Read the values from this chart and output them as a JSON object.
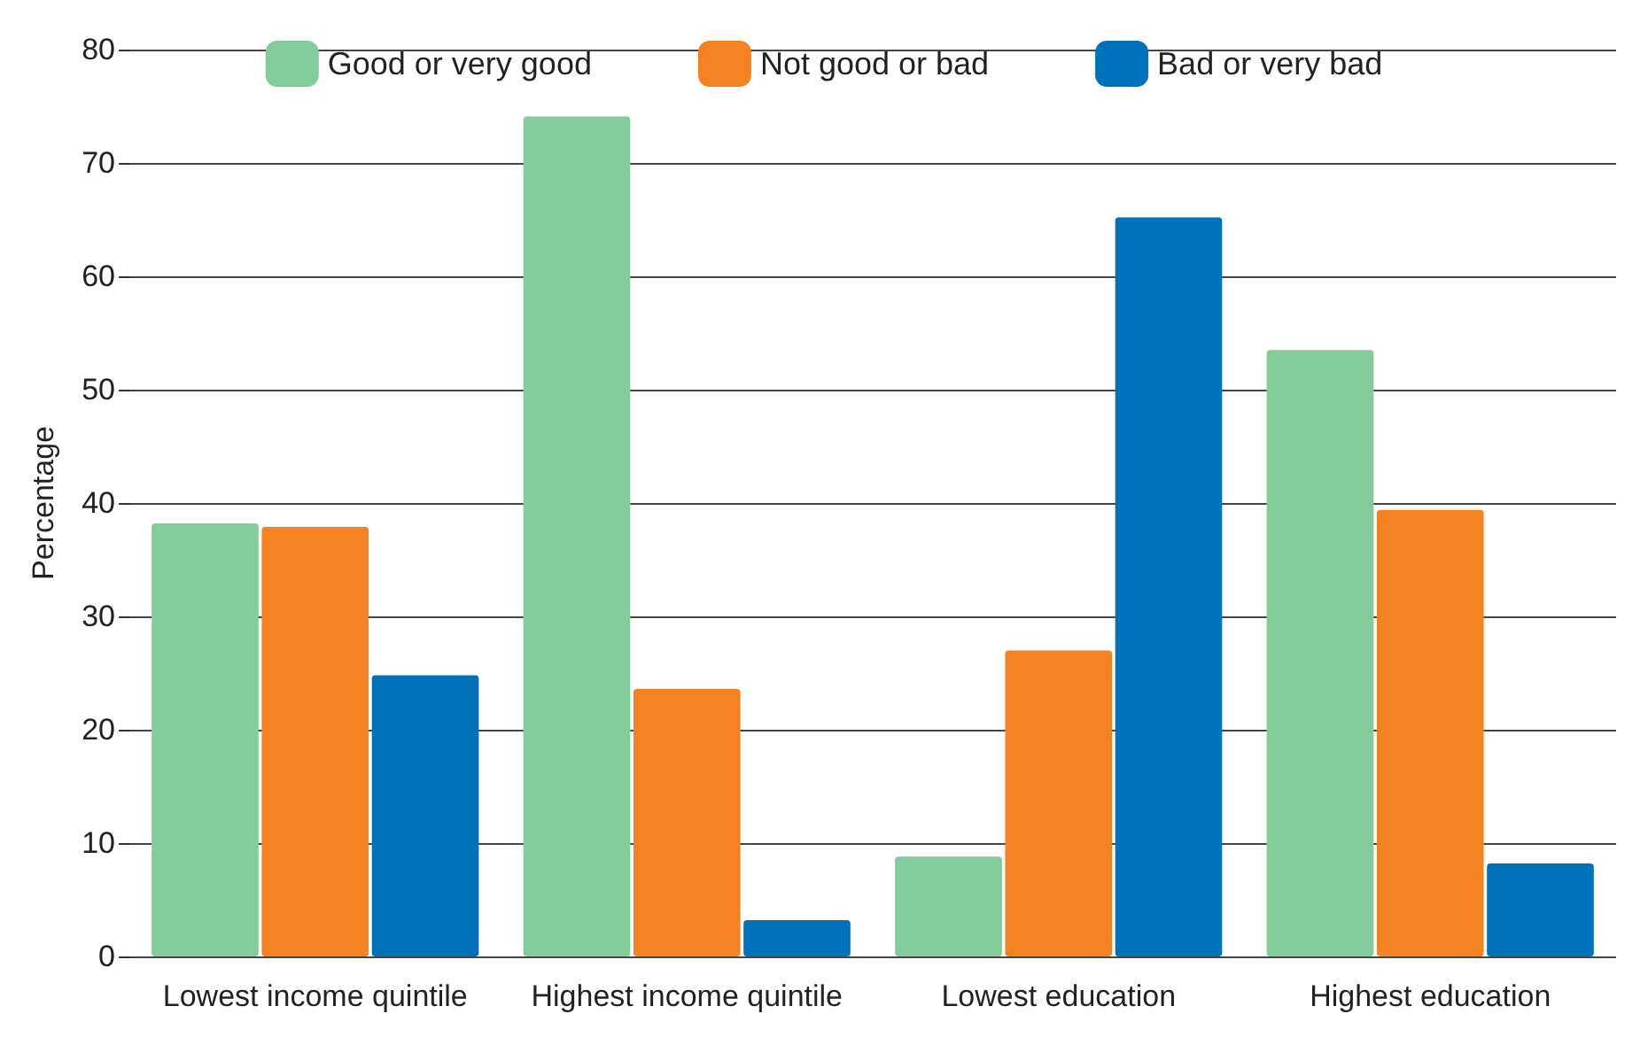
{
  "chart_data": {
    "type": "bar",
    "ylabel": "Percentage",
    "categories": [
      "Lowest income quintile",
      "Highest income quintile",
      "Lowest education",
      "Highest education"
    ],
    "series": [
      {
        "name": "Good or very good",
        "color": "#82cc9a",
        "values": [
          38.2,
          74.1,
          8.8,
          53.5
        ]
      },
      {
        "name": "Not good or bad",
        "color": "#f58220",
        "values": [
          37.9,
          23.6,
          27.0,
          39.4
        ]
      },
      {
        "name": "Bad or very bad",
        "color": "#0072bc",
        "values": [
          24.8,
          3.2,
          65.2,
          8.2
        ]
      }
    ],
    "ylim": [
      0,
      80
    ],
    "yticks": [
      0,
      10,
      20,
      30,
      40,
      50,
      60,
      70,
      80
    ],
    "grid": "y",
    "legend": "top"
  }
}
